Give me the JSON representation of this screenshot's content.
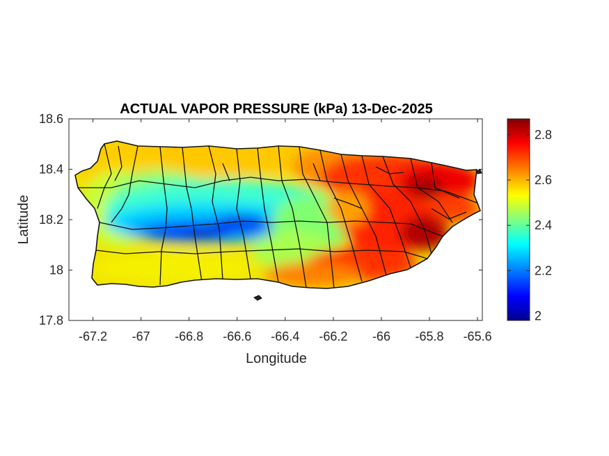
{
  "chart_data": {
    "type": "heatmap",
    "title": "ACTUAL VAPOR PRESSURE (kPa) 13-Dec-2025",
    "xlabel": "Longitude",
    "ylabel": "Latitude",
    "xlim": [
      -67.3,
      -65.58
    ],
    "ylim": [
      17.8,
      18.6
    ],
    "x_ticks": [
      -67.2,
      -67,
      -66.8,
      -66.6,
      -66.4,
      -66.2,
      -66,
      -65.8,
      -65.6
    ],
    "x_tick_labels": [
      "-67.2",
      "-67",
      "-66.8",
      "-66.6",
      "-66.4",
      "-66.2",
      "-66",
      "-65.8",
      "-65.6"
    ],
    "y_ticks": [
      17.8,
      18,
      18.2,
      18.4,
      18.6
    ],
    "y_tick_labels": [
      "17.8",
      "18",
      "18.2",
      "18.4",
      "18.6"
    ],
    "colorbar": {
      "colormap": "jet",
      "range": [
        1.98,
        2.87
      ],
      "ticks": [
        2,
        2.2,
        2.4,
        2.6,
        2.8
      ],
      "tick_labels": [
        "2",
        "2.2",
        "2.4",
        "2.6",
        "2.8"
      ],
      "stops": [
        "#00008f",
        "#0000ff",
        "#00ffff",
        "#ffff00",
        "#ff0000",
        "#800000"
      ]
    },
    "field_description_values": {
      "central_mountain_min": 2.0,
      "west_interior": 2.3,
      "north_coast": 2.6,
      "south_coast": 2.55,
      "east_max": 2.85
    },
    "grid": false,
    "colorbar_placement": "right"
  }
}
